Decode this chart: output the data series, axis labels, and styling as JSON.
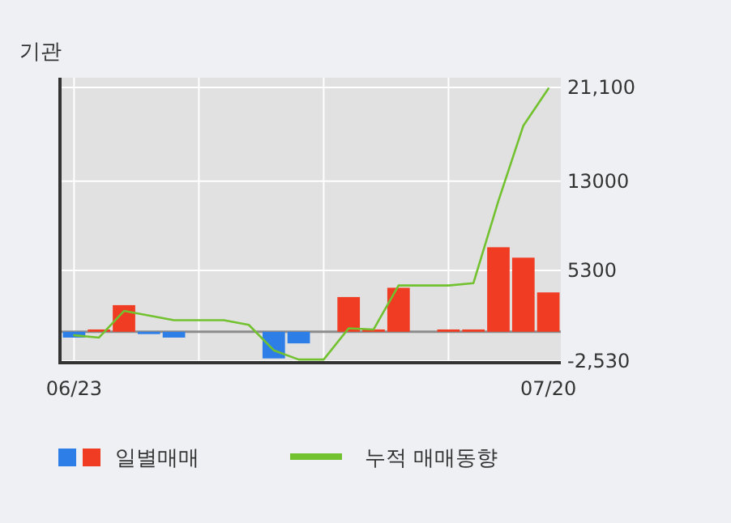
{
  "chart_data": {
    "type": "bar",
    "title": "기관",
    "categories": [
      "06/23",
      null,
      null,
      null,
      null,
      null,
      null,
      null,
      null,
      null,
      null,
      null,
      null,
      null,
      null,
      null,
      null,
      null,
      null,
      "07/20"
    ],
    "series": [
      {
        "name": "일별매매",
        "colors": [
          "#2e7ee8",
          "#f03c22",
          "#f03c22",
          "#2e7ee8",
          "#2e7ee8",
          "#f03c22",
          "#f03c22",
          "#f03c22",
          "#2e7ee8",
          "#2e7ee8",
          "#f03c22",
          "#f03c22",
          "#f03c22",
          "#f03c22",
          "#f03c22",
          "#f03c22",
          "#f03c22",
          "#f03c22",
          "#f03c22",
          "#f03c22"
        ],
        "values": [
          -500,
          200,
          2300,
          -200,
          -500,
          0,
          0,
          0,
          -2300,
          -1000,
          0,
          3000,
          200,
          3800,
          0,
          200,
          200,
          7300,
          6400,
          3400
        ]
      },
      {
        "type": "line",
        "name": "누적 매매동향",
        "color": "#72c12f",
        "values": [
          -300,
          -500,
          1800,
          1400,
          1000,
          1000,
          1000,
          600,
          -1600,
          -2400,
          -2400,
          300,
          200,
          4000,
          4000,
          4000,
          4200,
          11300,
          17800,
          21000
        ]
      }
    ],
    "ylim": [
      -2530,
      21100
    ],
    "yticks": [
      {
        "value": -2530,
        "label": "-2,530"
      },
      5300,
      13000,
      {
        "value": 21100,
        "label": "21,100"
      }
    ],
    "ref_lines": [
      {
        "axis": "y",
        "value": 0,
        "color": "#8c8c8c"
      }
    ],
    "grid": true,
    "legend": "bottom"
  }
}
